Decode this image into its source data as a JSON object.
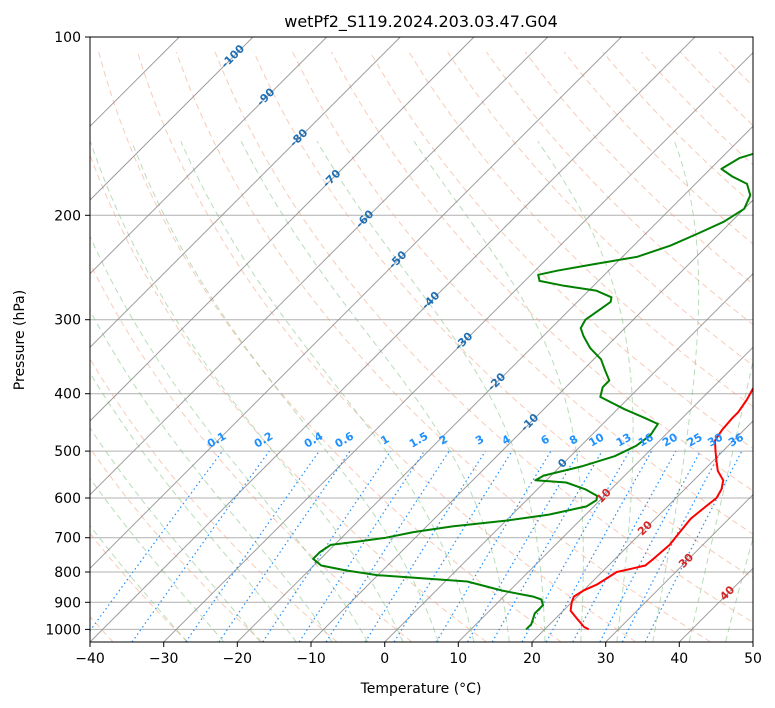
{
  "chart_data": {
    "type": "line",
    "subtype": "skew-t log-p diagram",
    "title": "wetPf2_S119.2024.203.03.47.G04",
    "xlabel": "Temperature (°C)",
    "ylabel": "Pressure (hPa)",
    "xlim": [
      -40,
      50
    ],
    "ylim": [
      1050,
      100
    ],
    "y_scale": "log",
    "grid": true,
    "x_ticks": [
      -40,
      -30,
      -20,
      -10,
      0,
      10,
      20,
      30,
      40,
      50
    ],
    "y_ticks": [
      100,
      200,
      300,
      400,
      500,
      600,
      700,
      800,
      900,
      1000
    ],
    "isotherm_labels": [
      -100,
      -90,
      -80,
      -70,
      -60,
      -50,
      -40,
      -30,
      -20,
      -10,
      0,
      10,
      20,
      30,
      40
    ],
    "mixing_ratio_labels": [
      "0.1",
      "0.2",
      "0.4",
      "0.6",
      "1",
      "1.5",
      "2",
      "3",
      "4",
      "6",
      "8",
      "10",
      "13",
      "16",
      "20",
      "25",
      "30",
      "36"
    ],
    "series": [
      {
        "key": "temperature",
        "color": "#ff0000",
        "points": [
          [
            26,
            1000
          ],
          [
            25,
            990
          ],
          [
            23,
            960
          ],
          [
            21,
            930
          ],
          [
            20,
            900
          ],
          [
            19.5,
            880
          ],
          [
            20,
            860
          ],
          [
            21,
            840
          ],
          [
            21.5,
            820
          ],
          [
            22,
            800
          ],
          [
            23.5,
            790
          ],
          [
            25,
            780
          ],
          [
            25.2,
            760
          ],
          [
            25.5,
            720
          ],
          [
            25.2,
            690
          ],
          [
            24.8,
            650
          ],
          [
            25.2,
            620
          ],
          [
            25.5,
            600
          ],
          [
            25,
            580
          ],
          [
            24,
            560
          ],
          [
            22,
            540
          ],
          [
            20.5,
            520
          ],
          [
            19,
            500
          ],
          [
            17.5,
            480
          ],
          [
            17,
            460
          ],
          [
            16.8,
            440
          ],
          [
            16.8,
            430
          ],
          [
            16.3,
            410
          ],
          [
            15.5,
            390
          ],
          [
            14.5,
            370
          ],
          [
            13.8,
            350
          ],
          [
            13,
            330
          ],
          [
            12.3,
            310
          ],
          [
            11.5,
            290
          ],
          [
            10.5,
            270
          ],
          [
            9.5,
            253
          ],
          [
            8.5,
            237
          ],
          [
            7.5,
            220
          ],
          [
            7,
            205
          ],
          [
            6.5,
            190
          ],
          [
            6.5,
            178
          ],
          [
            7.5,
            165
          ],
          [
            7.5,
            155
          ],
          [
            6.5,
            145
          ],
          [
            5.5,
            135
          ],
          [
            4.5,
            125
          ],
          [
            3.5,
            115
          ],
          [
            3.5,
            108
          ],
          [
            4.5,
            104
          ],
          [
            6,
            100
          ]
        ]
      },
      {
        "key": "dewpoint",
        "color": "#008000",
        "points": [
          [
            17.5,
            1000
          ],
          [
            17.5,
            980
          ],
          [
            17,
            960
          ],
          [
            16.5,
            940
          ],
          [
            16.5,
            910
          ],
          [
            15.5,
            890
          ],
          [
            14,
            880
          ],
          [
            9,
            860
          ],
          [
            3,
            830
          ],
          [
            -10,
            810
          ],
          [
            -15,
            795
          ],
          [
            -19,
            780
          ],
          [
            -21,
            760
          ],
          [
            -21,
            740
          ],
          [
            -20.5,
            720
          ],
          [
            -17,
            710
          ],
          [
            -14,
            700
          ],
          [
            -11,
            685
          ],
          [
            -6.5,
            670
          ],
          [
            0,
            655
          ],
          [
            5,
            640
          ],
          [
            9,
            620
          ],
          [
            9.5,
            605
          ],
          [
            9,
            595
          ],
          [
            6.5,
            580
          ],
          [
            3,
            565
          ],
          [
            -1.5,
            560
          ],
          [
            -1,
            550
          ],
          [
            3,
            530
          ],
          [
            6,
            510
          ],
          [
            7.5,
            490
          ],
          [
            8,
            470
          ],
          [
            7.5,
            450
          ],
          [
            5,
            440
          ],
          [
            1,
            425
          ],
          [
            -4,
            405
          ],
          [
            -5,
            390
          ],
          [
            -5,
            380
          ],
          [
            -7,
            365
          ],
          [
            -9,
            350
          ],
          [
            -12,
            335
          ],
          [
            -14.5,
            320
          ],
          [
            -16,
            310
          ],
          [
            -16.5,
            300
          ],
          [
            -16,
            290
          ],
          [
            -15.5,
            280
          ],
          [
            -16,
            275
          ],
          [
            -19,
            268
          ],
          [
            -24,
            263
          ],
          [
            -28,
            258
          ],
          [
            -29,
            252
          ],
          [
            -27,
            248
          ],
          [
            -23,
            242
          ],
          [
            -18,
            235
          ],
          [
            -15,
            225
          ],
          [
            -13,
            215
          ],
          [
            -11,
            205
          ],
          [
            -10,
            195
          ],
          [
            -11,
            185
          ],
          [
            -13,
            177
          ],
          [
            -16,
            172
          ],
          [
            -18.5,
            167
          ],
          [
            -17.5,
            160
          ],
          [
            -15,
            155
          ],
          [
            -12,
            150
          ],
          [
            -10,
            145
          ],
          [
            -8,
            140
          ],
          [
            -6,
            136
          ],
          [
            -5,
            132
          ],
          [
            -4,
            128
          ],
          [
            -3,
            124
          ],
          [
            -2.5,
            119
          ],
          [
            -2,
            115
          ],
          [
            -2,
            111
          ],
          [
            -1.5,
            106
          ],
          [
            -1,
            102
          ],
          [
            -0.5,
            100
          ]
        ]
      }
    ]
  }
}
